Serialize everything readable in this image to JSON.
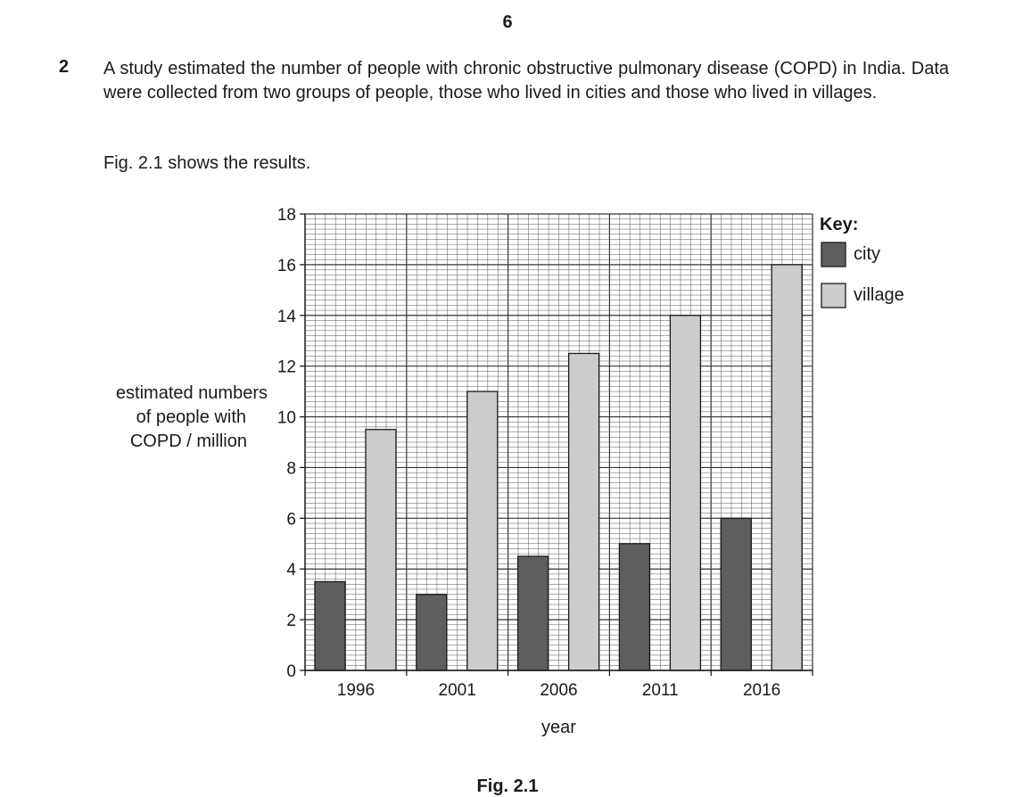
{
  "page": {
    "number": "6"
  },
  "question": {
    "number": "2",
    "text": "A study estimated the number of people with chronic obstructive pulmonary disease (COPD) in India. Data were collected from two groups of people, those who lived in cities and those who lived in villages.",
    "intro": "Fig. 2.1 shows the results."
  },
  "figure": {
    "caption": "Fig. 2.1"
  },
  "chart_data": {
    "type": "bar",
    "categories": [
      "1996",
      "2001",
      "2006",
      "2011",
      "2016"
    ],
    "series": [
      {
        "name": "city",
        "values": [
          3.5,
          3.0,
          4.5,
          5.0,
          6.0
        ],
        "color": "#5e5e5e"
      },
      {
        "name": "village",
        "values": [
          9.5,
          11.0,
          12.5,
          14.0,
          16.0
        ],
        "color": "#cccccc"
      }
    ],
    "xlabel": "year",
    "ylabel_lines": [
      "estimated numbers",
      "of people with",
      "COPD / million"
    ],
    "ylim": [
      0,
      18
    ],
    "yticks": [
      0,
      2,
      4,
      6,
      8,
      10,
      12,
      14,
      16,
      18
    ],
    "grid": true,
    "legend": {
      "title": "Key:",
      "placement": "right"
    }
  }
}
